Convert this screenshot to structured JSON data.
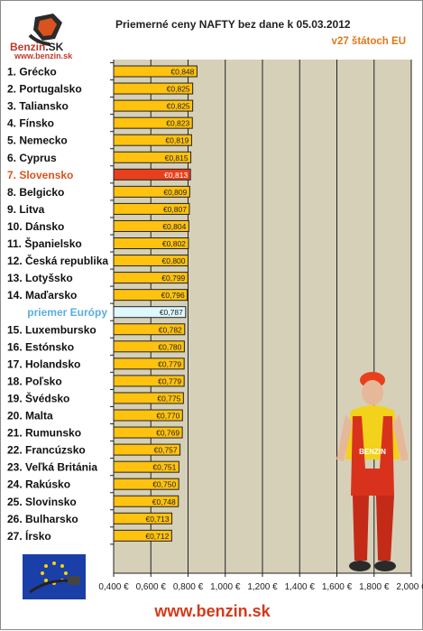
{
  "logo": {
    "brand": "Benzin",
    "brand_suffix": ".SK",
    "url": "www.benzin.sk"
  },
  "footer": {
    "url": "www.benzin.sk"
  },
  "colors": {
    "plot_bg": "#d6d0b9",
    "bar": "#ffc20e",
    "highlight_bar": "#e8401c",
    "average_bar": "#dff8ff",
    "highlight_label": "#d9531e",
    "average_label": "#5aaee0"
  },
  "chart_data": {
    "type": "bar",
    "orientation": "horizontal",
    "title": "Priemerné ceny NAFTY bez dane k 05.03.2012",
    "subtitle": "v27 štátoch EU",
    "categories": [
      "1. Grécko",
      "2. Portugalsko",
      "3. Taliansko",
      "4. Fínsko",
      "5. Nemecko",
      "6. Cyprus",
      "7. Slovensko",
      "8. Belgicko",
      "9. Litva",
      "10. Dánsko",
      "11. Španielsko",
      "12. Česká republika",
      "13. Lotyšsko",
      "14. Maďarsko",
      "priemer Európy",
      "15. Luxembursko",
      "16. Estónsko",
      "17. Holandsko",
      "18. Poľsko",
      "19. Švédsko",
      "20. Malta",
      "21. Rumunsko",
      "22. Francúzsko",
      "23. Veľká Británia",
      "24. Rakúsko",
      "25. Slovinsko",
      "26. Bulharsko",
      "27. Írsko"
    ],
    "values": [
      0.848,
      0.825,
      0.825,
      0.823,
      0.819,
      0.815,
      0.813,
      0.809,
      0.807,
      0.804,
      0.802,
      0.8,
      0.799,
      0.796,
      0.787,
      0.782,
      0.78,
      0.779,
      0.779,
      0.775,
      0.77,
      0.769,
      0.757,
      0.751,
      0.75,
      0.748,
      0.713,
      0.712
    ],
    "value_labels": [
      "€0,848",
      "€0,825",
      "€0,825",
      "€0,823",
      "€0,819",
      "€0,815",
      "€0,813",
      "€0,809",
      "€0,807",
      "€0,804",
      "€0,802",
      "€0,800",
      "€0,799",
      "€0,796",
      "€0,787",
      "€0,782",
      "€0,780",
      "€0,779",
      "€0,779",
      "€0,775",
      "€0,770",
      "€0,769",
      "€0,757",
      "€0,751",
      "€0,750",
      "€0,748",
      "€0,713",
      "€0,712"
    ],
    "highlight": "7. Slovensko",
    "average": "priemer Európy",
    "xlim": [
      0.4,
      2.0
    ],
    "xticks": [
      0.4,
      0.6,
      0.8,
      1.0,
      1.2,
      1.4,
      1.6,
      1.8,
      2.0
    ],
    "xtick_labels": [
      "0,400 €",
      "0,600 €",
      "0,800 €",
      "1,000 €",
      "1,200 €",
      "1,400 €",
      "1,600 €",
      "1,800 €",
      "2,000 €"
    ],
    "grid": true
  }
}
